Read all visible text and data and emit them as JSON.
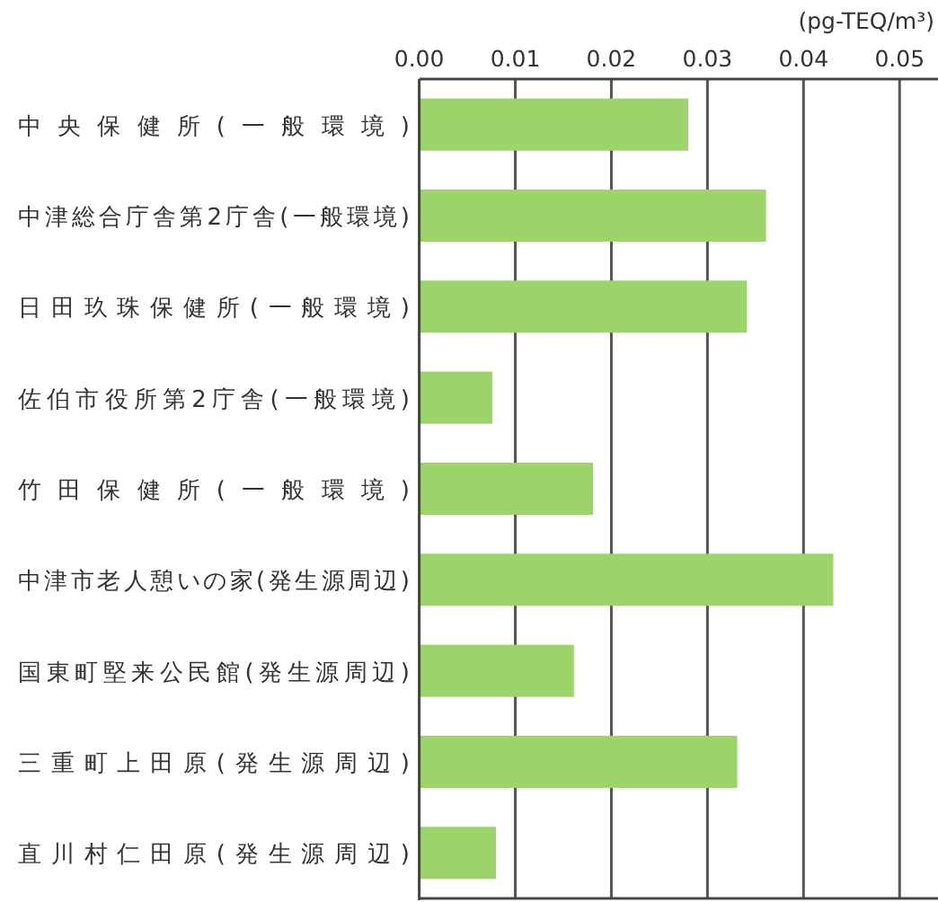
{
  "chart_data": {
    "type": "bar",
    "orientation": "horizontal",
    "xlabel": "(pg-TEQ/m³)",
    "categories": [
      "中央保健所(一般環境)",
      "中津総合庁舎第2庁舎(一般環境)",
      "日田玖珠保健所(一般環境)",
      "佐伯市役所第2庁舎(一般環境)",
      "竹田保健所(一般環境)",
      "中津市老人憩いの家(発生源周辺)",
      "国東町堅来公民館(発生源周辺)",
      "三重町上田原(発生源周辺)",
      "直川村仁田原(発生源周辺)"
    ],
    "values": [
      0.028,
      0.0361,
      0.0341,
      0.0076,
      0.0181,
      0.0431,
      0.0161,
      0.0331,
      0.008
    ],
    "color": "#9bd46b",
    "xlim": [
      0,
      0.054
    ],
    "xticks": [
      {
        "value": 0,
        "label": "0.00"
      },
      {
        "value": 0.01,
        "label": "0.01"
      },
      {
        "value": 0.02,
        "label": "0.02"
      },
      {
        "value": 0.03,
        "label": "0.03"
      },
      {
        "value": 0.04,
        "label": "0.04"
      },
      {
        "value": 0.05,
        "label": "0.05"
      }
    ],
    "grid": "x"
  }
}
